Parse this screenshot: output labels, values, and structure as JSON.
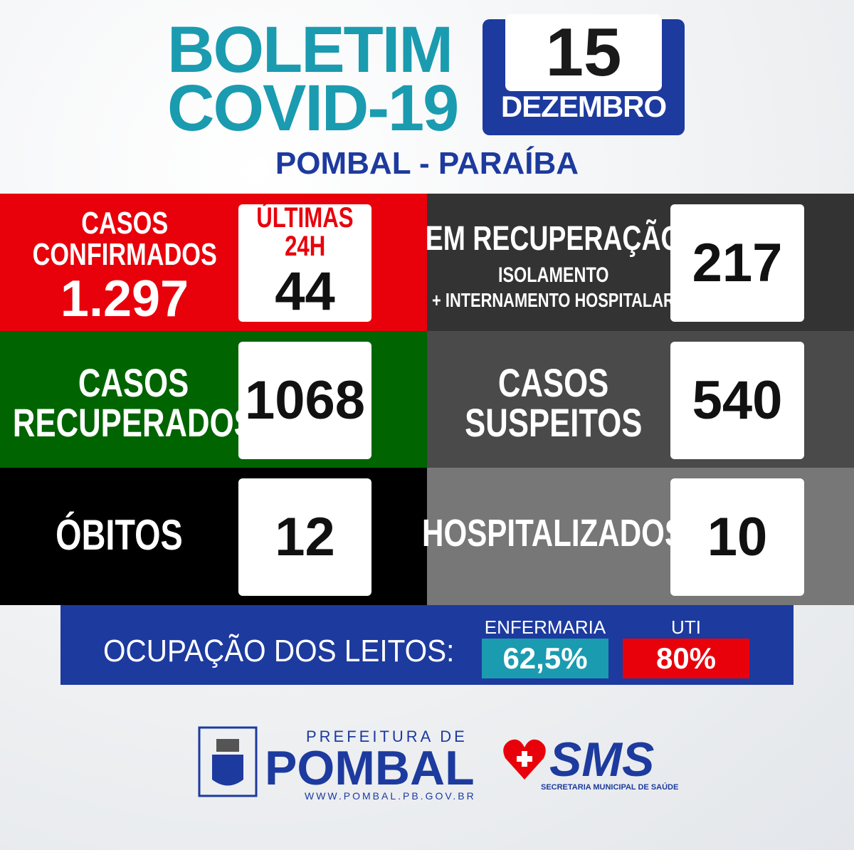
{
  "header": {
    "title_line1": "BOLETIM",
    "title_line2": "COVID-19",
    "day": "15",
    "month": "DEZEMBRO",
    "location": "POMBAL - PARAÍBA"
  },
  "cells": {
    "confirmed": {
      "label_line1": "CASOS",
      "label_line2": "CONFIRMADOS",
      "value": "1.297",
      "recent_label_line1": "ÚLTIMAS",
      "recent_label_line2": "24H",
      "recent_value": "44"
    },
    "recovering": {
      "label": "EM RECUPERAÇÃO",
      "sub1": "ISOLAMENTO",
      "sub2": "+ INTERNAMENTO HOSPITALAR",
      "value": "217"
    },
    "recovered": {
      "label_line1": "CASOS",
      "label_line2": "RECUPERADOS",
      "value": "1068"
    },
    "suspected": {
      "label_line1": "CASOS",
      "label_line2": "SUSPEITOS",
      "value": "540"
    },
    "deaths": {
      "label": "ÓBITOS",
      "value": "12"
    },
    "hospitalized": {
      "label": "HOSPITALIZADOS",
      "value": "10"
    }
  },
  "beds": {
    "label": "OCUPAÇÃO DOS LEITOS:",
    "ward_label": "ENFERMARIA",
    "ward_value": "62,5%",
    "icu_label": "UTI",
    "icu_value": "80%"
  },
  "footer": {
    "prefeitura": "PREFEITURA DE",
    "city": "POMBAL",
    "website": "WWW.POMBAL.PB.GOV.BR",
    "sms": "SMS",
    "sms_full": "SECRETARIA MUNICIPAL DE SAÚDE"
  }
}
